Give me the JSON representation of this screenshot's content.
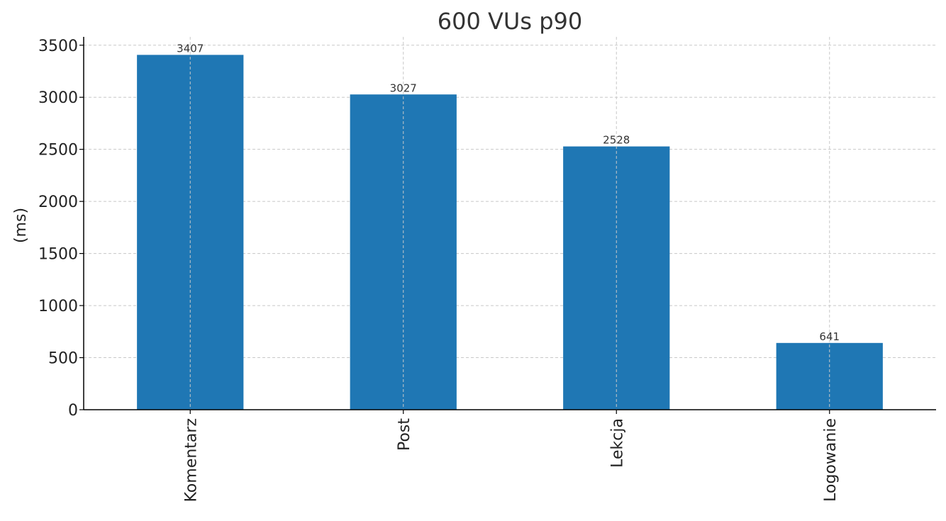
{
  "chart_data": {
    "type": "bar",
    "title": "600 VUs p90",
    "xlabel": "",
    "ylabel": "(ms)",
    "categories": [
      "Komentarz",
      "Post",
      "Lekcja",
      "Logowanie"
    ],
    "values": [
      3407,
      3027,
      2528,
      641
    ],
    "data_labels": [
      "3407",
      "3027",
      "2528",
      "641"
    ],
    "ylim": [
      0,
      3580
    ],
    "yticks": [
      0,
      500,
      1000,
      1500,
      2000,
      2500,
      3000,
      3500
    ],
    "ytick_labels": [
      "0",
      "500",
      "1000",
      "1500",
      "2000",
      "2500",
      "3000",
      "3500"
    ],
    "grid": true,
    "bar_color": "#1f77b4"
  }
}
